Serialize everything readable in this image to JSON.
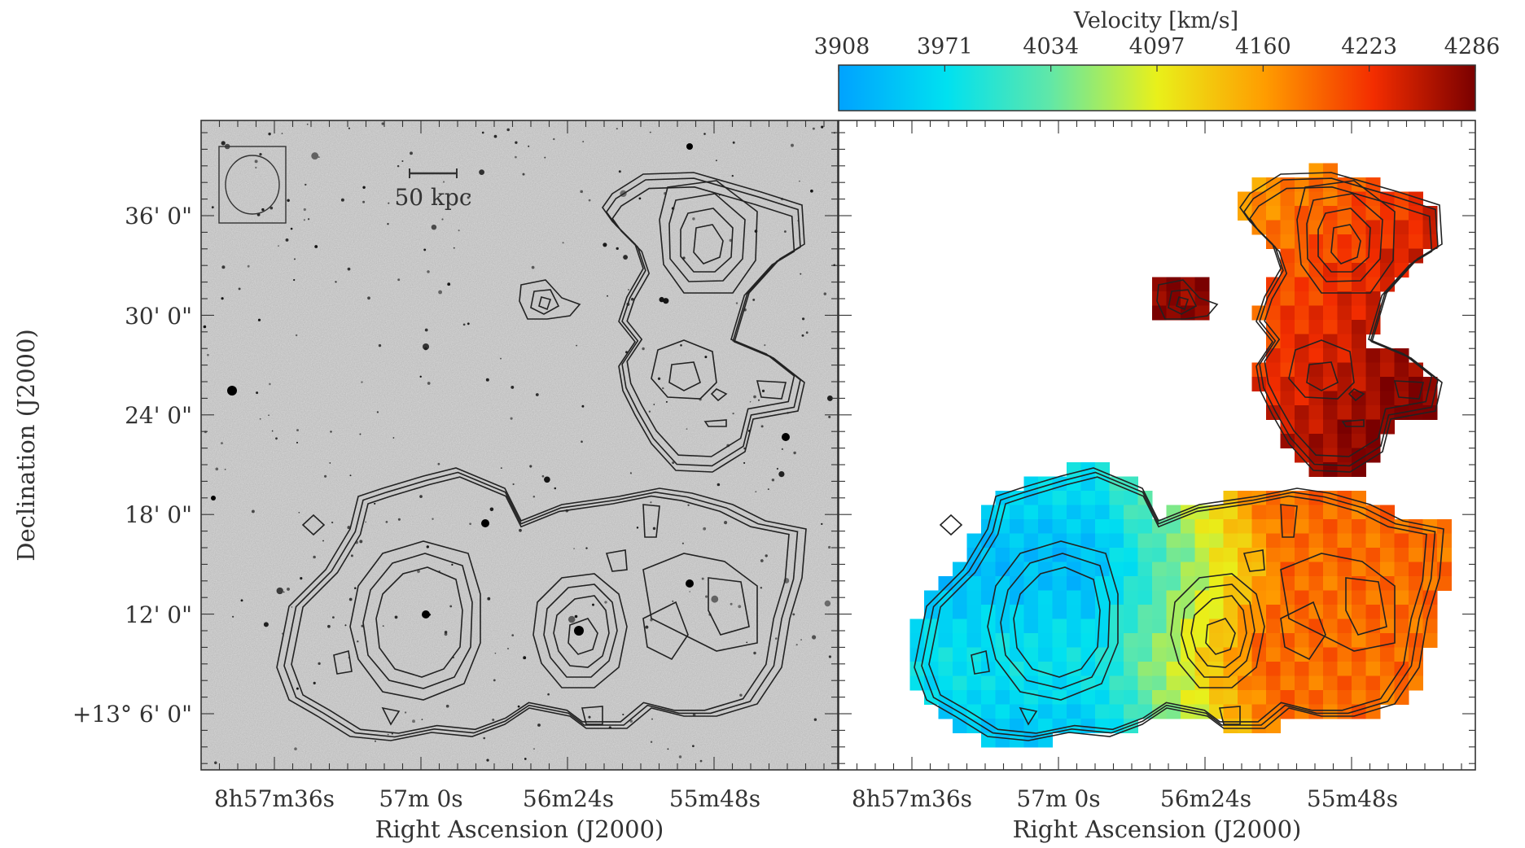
{
  "figure": {
    "colorbar": {
      "title": "Velocity [km/s]",
      "ticks": [
        "3908",
        "3971",
        "4034",
        "4097",
        "4160",
        "4223",
        "4286"
      ],
      "vmin": 3908,
      "vmax": 4286,
      "colors": [
        "#00a2ff",
        "#00e1f0",
        "#5fe7a9",
        "#e9f01a",
        "#ff9c00",
        "#f32d00",
        "#7a0000"
      ]
    },
    "left_panel": {
      "scale_bar_label": "50 kpc",
      "background_color": "#d9d9d9"
    },
    "right_panel": {
      "background_color": "#ffffff"
    },
    "y_axis": {
      "title": "Declination (J2000)",
      "ticks": [
        "36' 0\"",
        "30' 0\"",
        "24' 0\"",
        "18' 0\"",
        "12' 0\"",
        "+13° 6' 0\""
      ]
    },
    "x_axis": {
      "title": "Right Ascension (J2000)",
      "ticks": [
        "8h57m36s",
        "57m 0s",
        "56m24s",
        "55m48s"
      ]
    }
  }
}
